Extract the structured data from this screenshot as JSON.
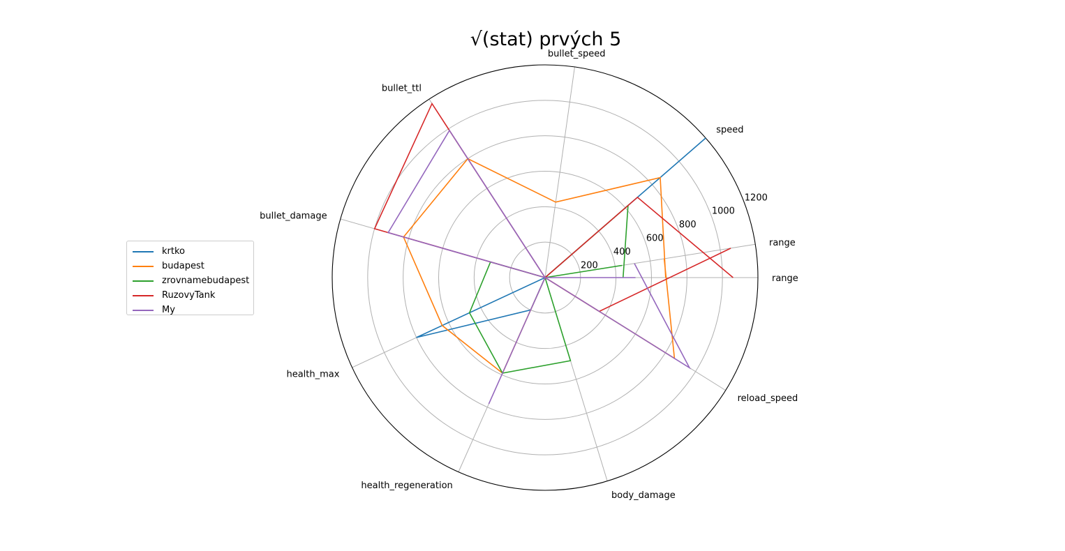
{
  "chart_data": {
    "type": "radar",
    "title": "√(stat) prvých 5",
    "axes": [
      "range",
      "speed",
      "bullet_speed",
      "bullet_ttl",
      "bullet_damage",
      "health_max",
      "health_regeneration",
      "body_damage",
      "reload_speed",
      "range"
    ],
    "radial_ticks": [
      "200",
      "400",
      "600",
      "800",
      "1000",
      "1200"
    ],
    "radial_tick_values": [
      200,
      400,
      600,
      800,
      1000,
      1200
    ],
    "rmax": 1200,
    "grid": true,
    "legend_position": "left",
    "series": [
      {
        "name": "krtko",
        "color": "#1f77b4",
        "values": [
          0,
          1200,
          0,
          0,
          0,
          800,
          200,
          0,
          0,
          0
        ]
      },
      {
        "name": "budapest",
        "color": "#ff7f0e",
        "values": [
          680,
          860,
          430,
          800,
          830,
          640,
          590,
          0,
          860,
          680
        ]
      },
      {
        "name": "zrovnamebudapest",
        "color": "#2ca02c",
        "values": [
          440,
          620,
          0,
          0,
          320,
          470,
          590,
          490,
          0,
          440
        ]
      },
      {
        "name": "RuzovyTank",
        "color": "#d62728",
        "values": [
          1060,
          690,
          0,
          1170,
          1000,
          0,
          0,
          0,
          360,
          1060
        ]
      },
      {
        "name": "My",
        "color": "#9467bd",
        "values": [
          510,
          0,
          0,
          990,
          920,
          0,
          780,
          0,
          960,
          510
        ]
      }
    ]
  }
}
